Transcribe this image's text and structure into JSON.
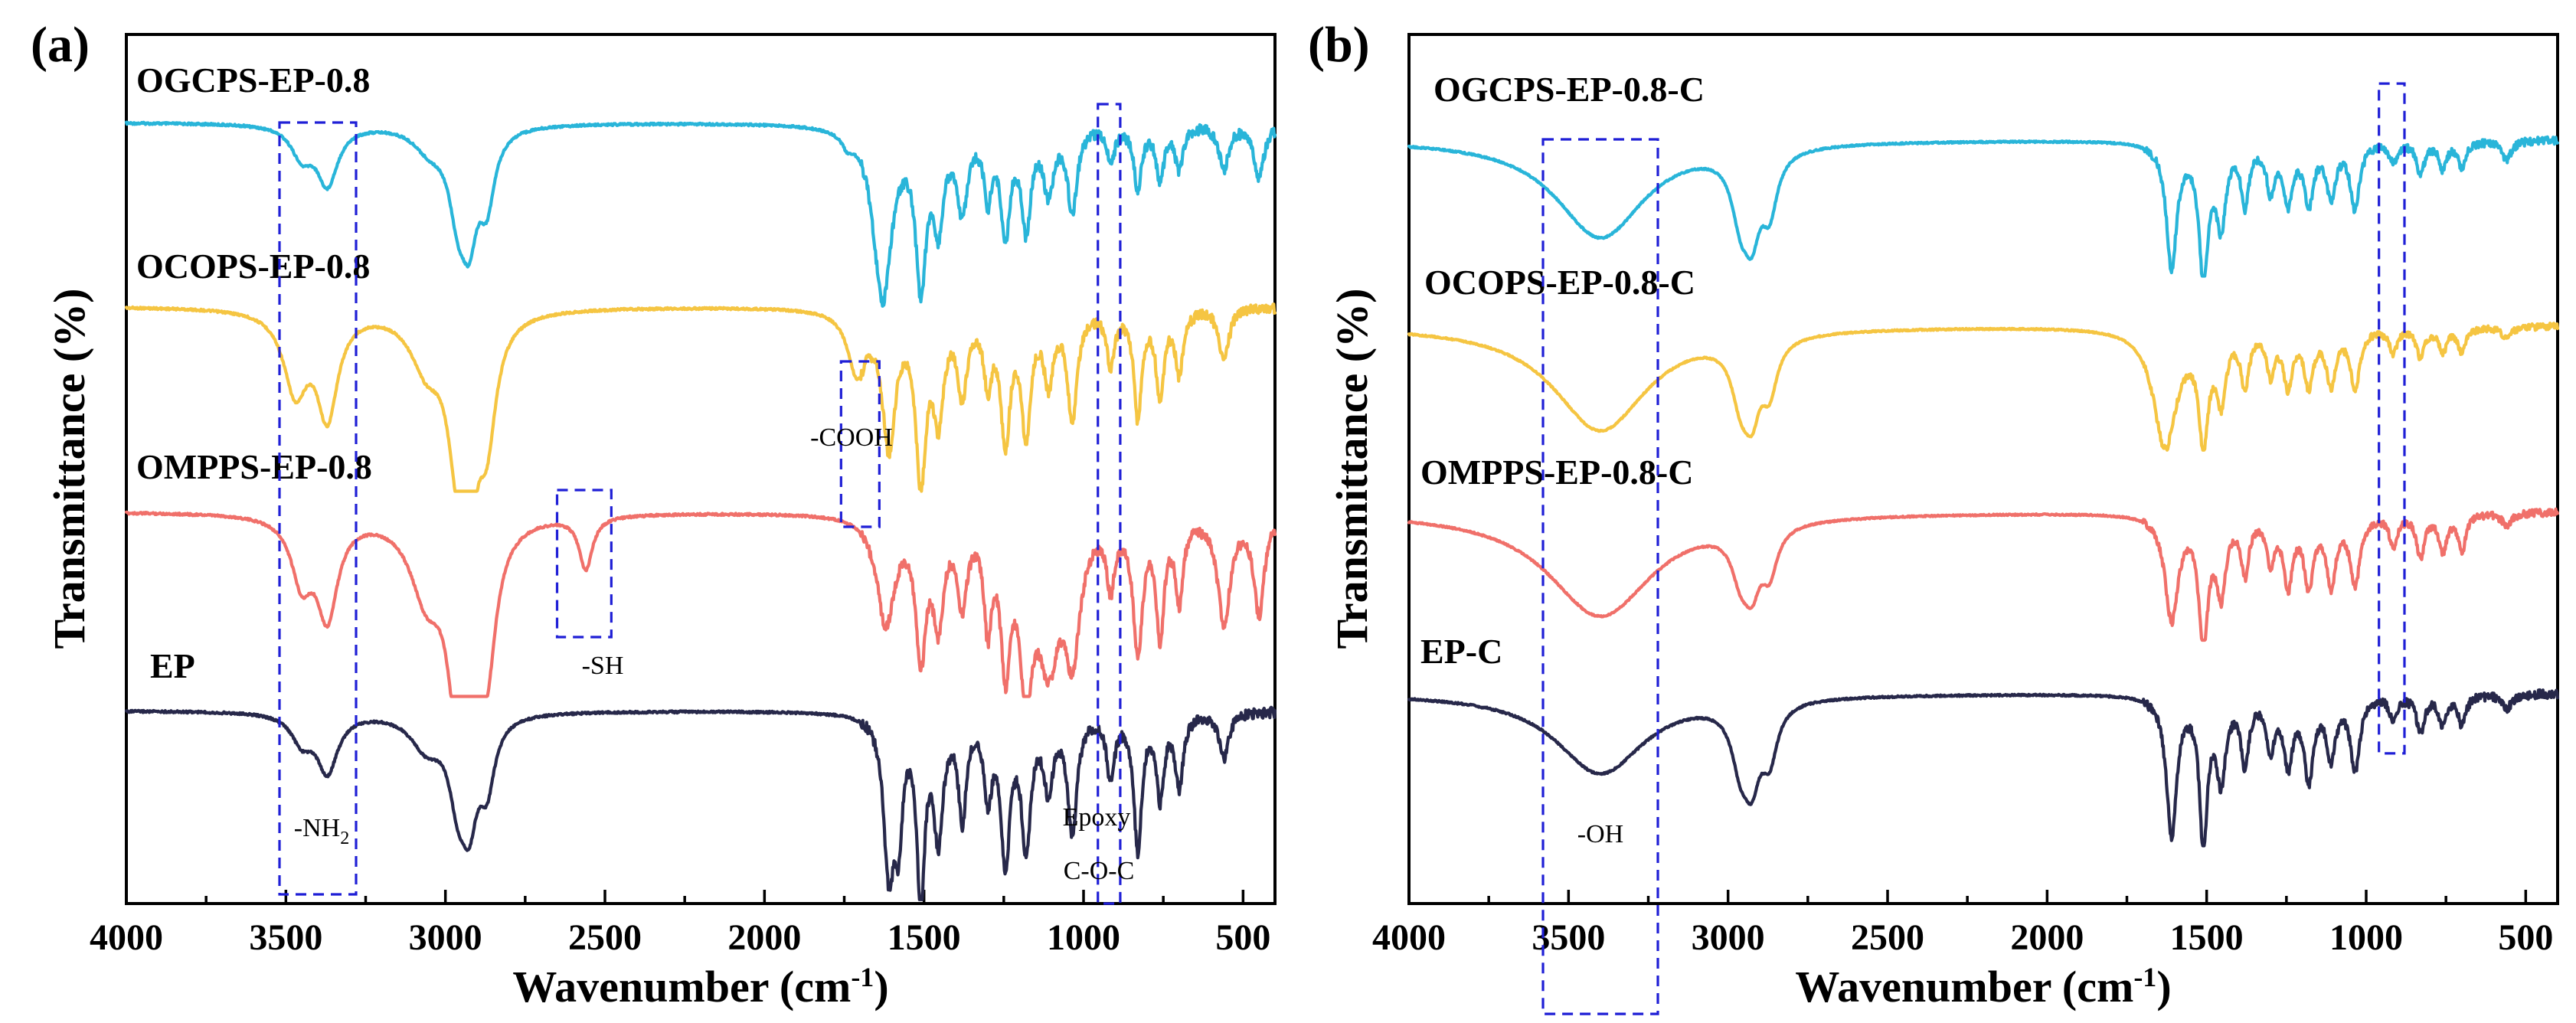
{
  "chart_data": [
    {
      "type": "line",
      "panel": "(a)",
      "xlabel": "Wavenumber (cm",
      "xlabel_sup": "-1",
      "xlabel_tail": ")",
      "ylabel": "Transmittance (%)",
      "xlim": [
        4000,
        400
      ],
      "xticks": [
        4000,
        3500,
        3000,
        2500,
        2000,
        1500,
        1000,
        500
      ],
      "series": [
        {
          "name": "OGCPS-EP-0.8",
          "color": "#29b5d9",
          "offset": 0.0,
          "peaks": [
            [
              3450,
              0.17,
              40
            ],
            [
              3370,
              0.33,
              40
            ],
            [
              3050,
              0.12,
              60
            ],
            [
              2960,
              0.42,
              35
            ],
            [
              2925,
              0.48,
              30
            ],
            [
              2870,
              0.38,
              30
            ],
            [
              1740,
              0.07,
              20
            ],
            [
              1630,
              0.98,
              35
            ],
            [
              1510,
              0.85,
              20
            ],
            [
              1455,
              0.5,
              20
            ],
            [
              1380,
              0.45,
              20
            ],
            [
              1300,
              0.36,
              15
            ],
            [
              1245,
              0.58,
              18
            ],
            [
              1180,
              0.55,
              18
            ],
            [
              1110,
              0.35,
              20
            ],
            [
              1035,
              0.48,
              18
            ],
            [
              915,
              0.2,
              15
            ],
            [
              830,
              0.35,
              15
            ],
            [
              760,
              0.3,
              15
            ],
            [
              700,
              0.25,
              15
            ],
            [
              560,
              0.25,
              18
            ],
            [
              450,
              0.3,
              20
            ]
          ]
        },
        {
          "name": "OCOPS-EP-0.8",
          "color": "#f5c542",
          "offset": 1.0,
          "peaks": [
            [
              3470,
              0.45,
              45
            ],
            [
              3370,
              0.58,
              40
            ],
            [
              3060,
              0.28,
              60
            ],
            [
              2960,
              0.7,
              40
            ],
            [
              2925,
              0.75,
              30
            ],
            [
              2870,
              0.6,
              35
            ],
            [
              1710,
              0.35,
              35
            ],
            [
              1610,
              0.75,
              25
            ],
            [
              1510,
              0.92,
              20
            ],
            [
              1455,
              0.55,
              20
            ],
            [
              1380,
              0.45,
              18
            ],
            [
              1300,
              0.38,
              15
            ],
            [
              1245,
              0.72,
              18
            ],
            [
              1180,
              0.68,
              18
            ],
            [
              1110,
              0.38,
              18
            ],
            [
              1035,
              0.62,
              18
            ],
            [
              915,
              0.3,
              15
            ],
            [
              830,
              0.6,
              15
            ],
            [
              760,
              0.5,
              15
            ],
            [
              700,
              0.35,
              15
            ],
            [
              560,
              0.3,
              18
            ]
          ]
        },
        {
          "name": "OMPPS-EP-0.8",
          "color": "#f0706a",
          "offset": 2.0,
          "peaks": [
            [
              3450,
              0.35,
              40
            ],
            [
              3370,
              0.55,
              40
            ],
            [
              3060,
              0.4,
              60
            ],
            [
              2960,
              0.8,
              40
            ],
            [
              2925,
              0.85,
              35
            ],
            [
              2870,
              0.65,
              35
            ],
            [
              2560,
              0.3,
              25
            ],
            [
              1620,
              0.6,
              35
            ],
            [
              1510,
              0.75,
              20
            ],
            [
              1455,
              0.55,
              20
            ],
            [
              1380,
              0.45,
              18
            ],
            [
              1300,
              0.55,
              15
            ],
            [
              1245,
              0.75,
              18
            ],
            [
              1180,
              0.85,
              25
            ],
            [
              1110,
              0.75,
              40
            ],
            [
              1035,
              0.7,
              30
            ],
            [
              915,
              0.35,
              15
            ],
            [
              830,
              0.75,
              18
            ],
            [
              760,
              0.65,
              15
            ],
            [
              700,
              0.45,
              15
            ],
            [
              560,
              0.6,
              25
            ],
            [
              450,
              0.55,
              20
            ]
          ]
        },
        {
          "name": "EP",
          "color": "#27284a",
          "offset": 3.0,
          "peaks": [
            [
              3450,
              0.15,
              40
            ],
            [
              3370,
              0.32,
              40
            ],
            [
              3060,
              0.18,
              60
            ],
            [
              2960,
              0.4,
              35
            ],
            [
              2925,
              0.45,
              30
            ],
            [
              2870,
              0.35,
              30
            ],
            [
              1610,
              0.85,
              20
            ],
            [
              1580,
              0.55,
              15
            ],
            [
              1510,
              1.0,
              15
            ],
            [
              1455,
              0.65,
              18
            ],
            [
              1380,
              0.55,
              15
            ],
            [
              1300,
              0.42,
              15
            ],
            [
              1245,
              0.78,
              18
            ],
            [
              1180,
              0.7,
              18
            ],
            [
              1110,
              0.38,
              18
            ],
            [
              1035,
              0.65,
              18
            ],
            [
              915,
              0.35,
              15
            ],
            [
              830,
              0.75,
              15
            ],
            [
              760,
              0.45,
              15
            ],
            [
              700,
              0.4,
              15
            ],
            [
              560,
              0.25,
              18
            ]
          ]
        }
      ],
      "annotations": [
        {
          "text": "-NH",
          "sub": "2",
          "box_x": [
            3520,
            3280
          ],
          "box_offsets": [
            0.0,
            4.2
          ]
        },
        {
          "text": "-COOH",
          "sub": "",
          "box_x": [
            1760,
            1640
          ],
          "box_offsets": [
            1.3,
            2.2
          ]
        },
        {
          "text": "-SH",
          "sub": "",
          "box_x": [
            2650,
            2480
          ],
          "box_offsets": [
            2.0,
            2.8
          ]
        },
        {
          "text": "Epoxy",
          "sub": "",
          "box_x": [
            955,
            885
          ],
          "box_offsets": [
            -0.1,
            4.25
          ]
        },
        {
          "text": "C-O-C",
          "sub": "",
          "box_x": [],
          "box_offsets": []
        }
      ]
    },
    {
      "type": "line",
      "panel": "(b)",
      "xlabel": "Wavenumber (cm",
      "xlabel_sup": "-1",
      "xlabel_tail": ")",
      "ylabel": "Transmittance (%)",
      "xlim": [
        4000,
        400
      ],
      "xticks": [
        4000,
        3500,
        3000,
        2500,
        2000,
        1500,
        1000,
        500
      ],
      "series": [
        {
          "name": "OGCPS-EP-0.8-C",
          "color": "#29b5d9",
          "offset": 0.0,
          "peaks": [
            [
              3400,
              0.75,
              170
            ],
            [
              2960,
              0.45,
              35
            ],
            [
              2925,
              0.5,
              30
            ],
            [
              2870,
              0.42,
              30
            ],
            [
              1610,
              0.95,
              20
            ],
            [
              1510,
              1.0,
              18
            ],
            [
              1455,
              0.6,
              18
            ],
            [
              1380,
              0.45,
              15
            ],
            [
              1300,
              0.35,
              15
            ],
            [
              1245,
              0.45,
              18
            ],
            [
              1180,
              0.45,
              18
            ],
            [
              1110,
              0.4,
              18
            ],
            [
              1035,
              0.5,
              18
            ],
            [
              915,
              0.15,
              15
            ],
            [
              830,
              0.25,
              15
            ],
            [
              760,
              0.2,
              15
            ],
            [
              700,
              0.2,
              15
            ],
            [
              560,
              0.15,
              18
            ]
          ]
        },
        {
          "name": "OCOPS-EP-0.8-C",
          "color": "#f5c542",
          "offset": 1.0,
          "peaks": [
            [
              3400,
              0.88,
              180
            ],
            [
              2960,
              0.45,
              35
            ],
            [
              2925,
              0.5,
              30
            ],
            [
              2870,
              0.4,
              30
            ],
            [
              1630,
              1.0,
              45
            ],
            [
              1510,
              0.88,
              18
            ],
            [
              1455,
              0.55,
              18
            ],
            [
              1380,
              0.45,
              15
            ],
            [
              1300,
              0.35,
              15
            ],
            [
              1245,
              0.45,
              18
            ],
            [
              1180,
              0.45,
              18
            ],
            [
              1110,
              0.45,
              18
            ],
            [
              1035,
              0.5,
              18
            ],
            [
              915,
              0.2,
              15
            ],
            [
              830,
              0.25,
              15
            ],
            [
              760,
              0.2,
              15
            ],
            [
              700,
              0.2,
              15
            ],
            [
              560,
              0.1,
              18
            ]
          ]
        },
        {
          "name": "OMPPS-EP-0.8-C",
          "color": "#f0706a",
          "offset": 2.0,
          "peaks": [
            [
              3400,
              0.85,
              200
            ],
            [
              2960,
              0.35,
              35
            ],
            [
              2925,
              0.4,
              30
            ],
            [
              2870,
              0.35,
              30
            ],
            [
              1610,
              0.85,
              25
            ],
            [
              1510,
              1.0,
              18
            ],
            [
              1455,
              0.6,
              18
            ],
            [
              1380,
              0.45,
              15
            ],
            [
              1300,
              0.35,
              15
            ],
            [
              1245,
              0.55,
              18
            ],
            [
              1180,
              0.55,
              18
            ],
            [
              1110,
              0.55,
              18
            ],
            [
              1035,
              0.55,
              20
            ],
            [
              915,
              0.25,
              15
            ],
            [
              830,
              0.35,
              15
            ],
            [
              760,
              0.3,
              15
            ],
            [
              700,
              0.3,
              15
            ],
            [
              560,
              0.1,
              18
            ]
          ]
        },
        {
          "name": "EP-C",
          "color": "#27284a",
          "offset": 3.0,
          "peaks": [
            [
              3400,
              0.55,
              170
            ],
            [
              2960,
              0.38,
              35
            ],
            [
              2925,
              0.42,
              30
            ],
            [
              2870,
              0.35,
              30
            ],
            [
              1610,
              0.95,
              20
            ],
            [
              1510,
              1.0,
              15
            ],
            [
              1455,
              0.55,
              18
            ],
            [
              1380,
              0.45,
              15
            ],
            [
              1300,
              0.35,
              15
            ],
            [
              1245,
              0.45,
              18
            ],
            [
              1180,
              0.55,
              18
            ],
            [
              1110,
              0.4,
              18
            ],
            [
              1035,
              0.5,
              18
            ],
            [
              915,
              0.15,
              15
            ],
            [
              830,
              0.25,
              15
            ],
            [
              760,
              0.2,
              15
            ],
            [
              700,
              0.2,
              15
            ],
            [
              560,
              0.1,
              18
            ]
          ]
        }
      ],
      "annotations": [
        {
          "text": "-OH",
          "sub": "",
          "box_x": [
            3580,
            3220
          ],
          "box_offsets": [
            0.0,
            4.7
          ]
        },
        {
          "text": "",
          "sub": "",
          "box_x": [
            960,
            880
          ],
          "box_offsets": [
            -0.3,
            3.3
          ]
        }
      ]
    }
  ]
}
